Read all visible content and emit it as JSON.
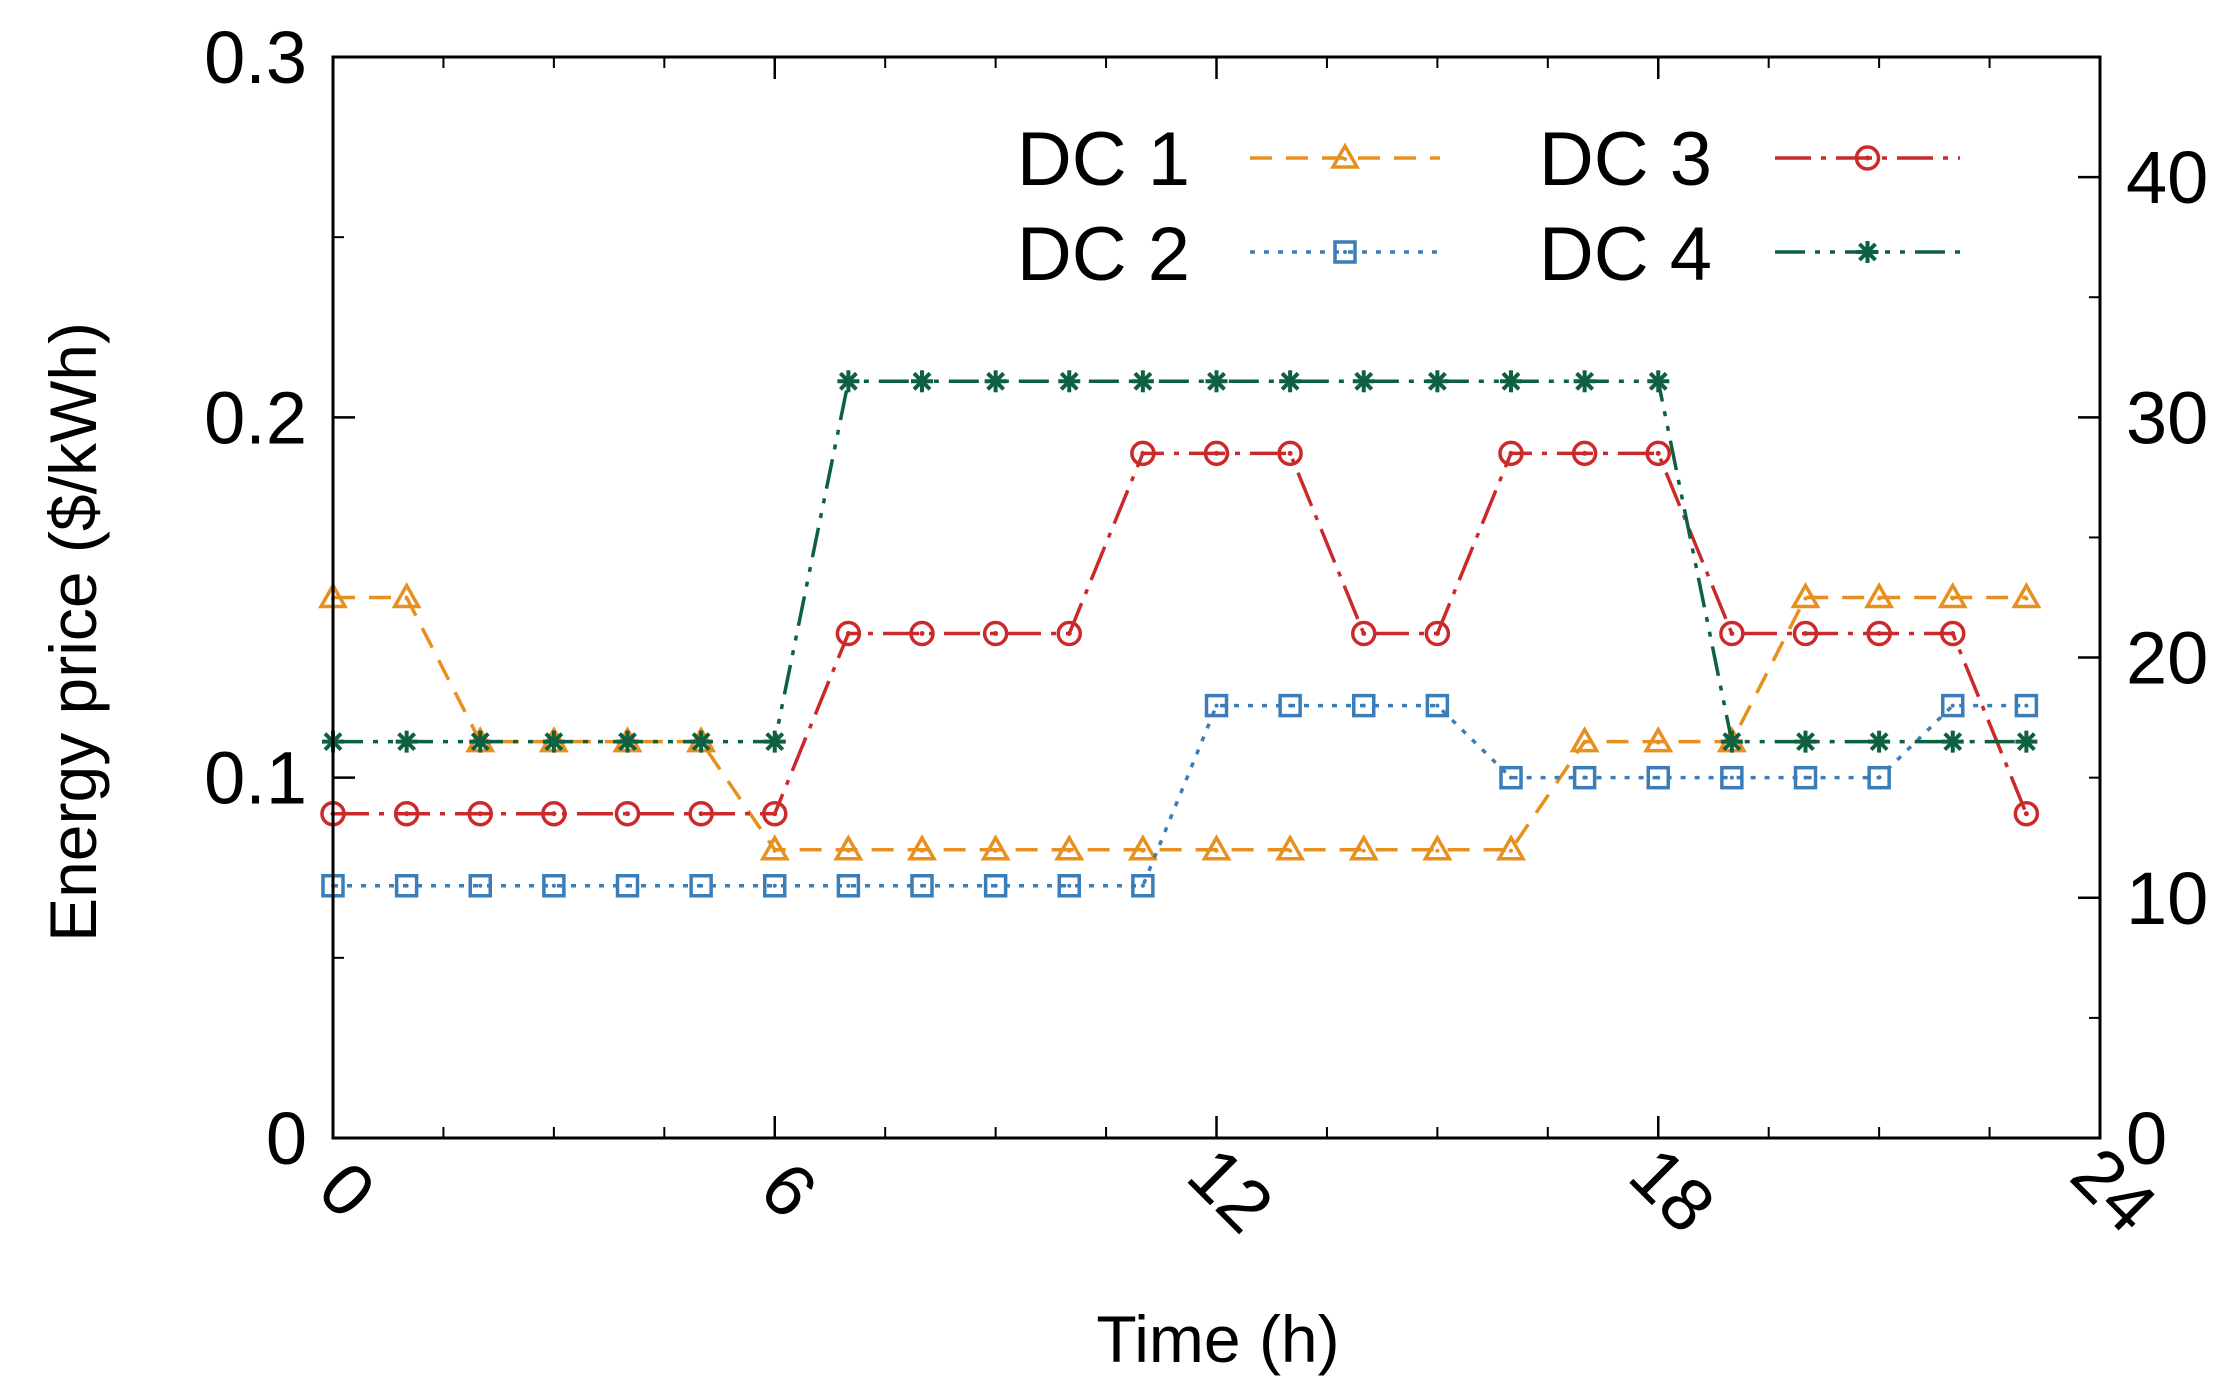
{
  "chart_data": {
    "type": "line",
    "title": "",
    "xlabel": "Time (h)",
    "ylabel": "Energy price ($/kWh)",
    "xlim": [
      0,
      24
    ],
    "ylim": [
      0,
      0.3
    ],
    "y2lim": [
      0,
      45
    ],
    "grid": false,
    "legend_placement": "top",
    "x_ticks": [
      "0",
      "6",
      "12",
      "18",
      "24"
    ],
    "y_ticks": [
      "0",
      "0.1",
      "0.2",
      "0.3"
    ],
    "y2_ticks": [
      "0",
      "10",
      "20",
      "30",
      "40"
    ],
    "x": [
      0,
      1,
      2,
      3,
      4,
      5,
      6,
      7,
      8,
      9,
      10,
      11,
      12,
      13,
      14,
      15,
      16,
      17,
      18,
      19,
      20,
      21,
      22,
      23
    ],
    "series": [
      {
        "name": "DC 1",
        "color": "#e8901f",
        "marker": "triangle",
        "dash": "dashed",
        "values": [
          0.15,
          0.15,
          0.11,
          0.11,
          0.11,
          0.11,
          0.08,
          0.08,
          0.08,
          0.08,
          0.08,
          0.08,
          0.08,
          0.08,
          0.08,
          0.08,
          0.08,
          0.11,
          0.11,
          0.11,
          0.15,
          0.15,
          0.15,
          0.15
        ]
      },
      {
        "name": "DC 2",
        "color": "#3a7db8",
        "marker": "square",
        "dash": "dotted",
        "values": [
          0.07,
          0.07,
          0.07,
          0.07,
          0.07,
          0.07,
          0.07,
          0.07,
          0.07,
          0.07,
          0.07,
          0.07,
          0.12,
          0.12,
          0.12,
          0.12,
          0.1,
          0.1,
          0.1,
          0.1,
          0.1,
          0.1,
          0.12,
          0.12
        ]
      },
      {
        "name": "DC 3",
        "color": "#cc2a2a",
        "marker": "circle",
        "dash": "dash-dot",
        "values": [
          0.09,
          0.09,
          0.09,
          0.09,
          0.09,
          0.09,
          0.09,
          0.14,
          0.14,
          0.14,
          0.14,
          0.19,
          0.19,
          0.19,
          0.14,
          0.14,
          0.19,
          0.19,
          0.19,
          0.14,
          0.14,
          0.14,
          0.14,
          0.09
        ]
      },
      {
        "name": "DC 4",
        "color": "#0d6040",
        "marker": "star",
        "dash": "dash-dot-dot",
        "values": [
          0.11,
          0.11,
          0.11,
          0.11,
          0.11,
          0.11,
          0.11,
          0.21,
          0.21,
          0.21,
          0.21,
          0.21,
          0.21,
          0.21,
          0.21,
          0.21,
          0.21,
          0.21,
          0.21,
          0.11,
          0.11,
          0.11,
          0.11,
          0.11
        ]
      }
    ]
  }
}
